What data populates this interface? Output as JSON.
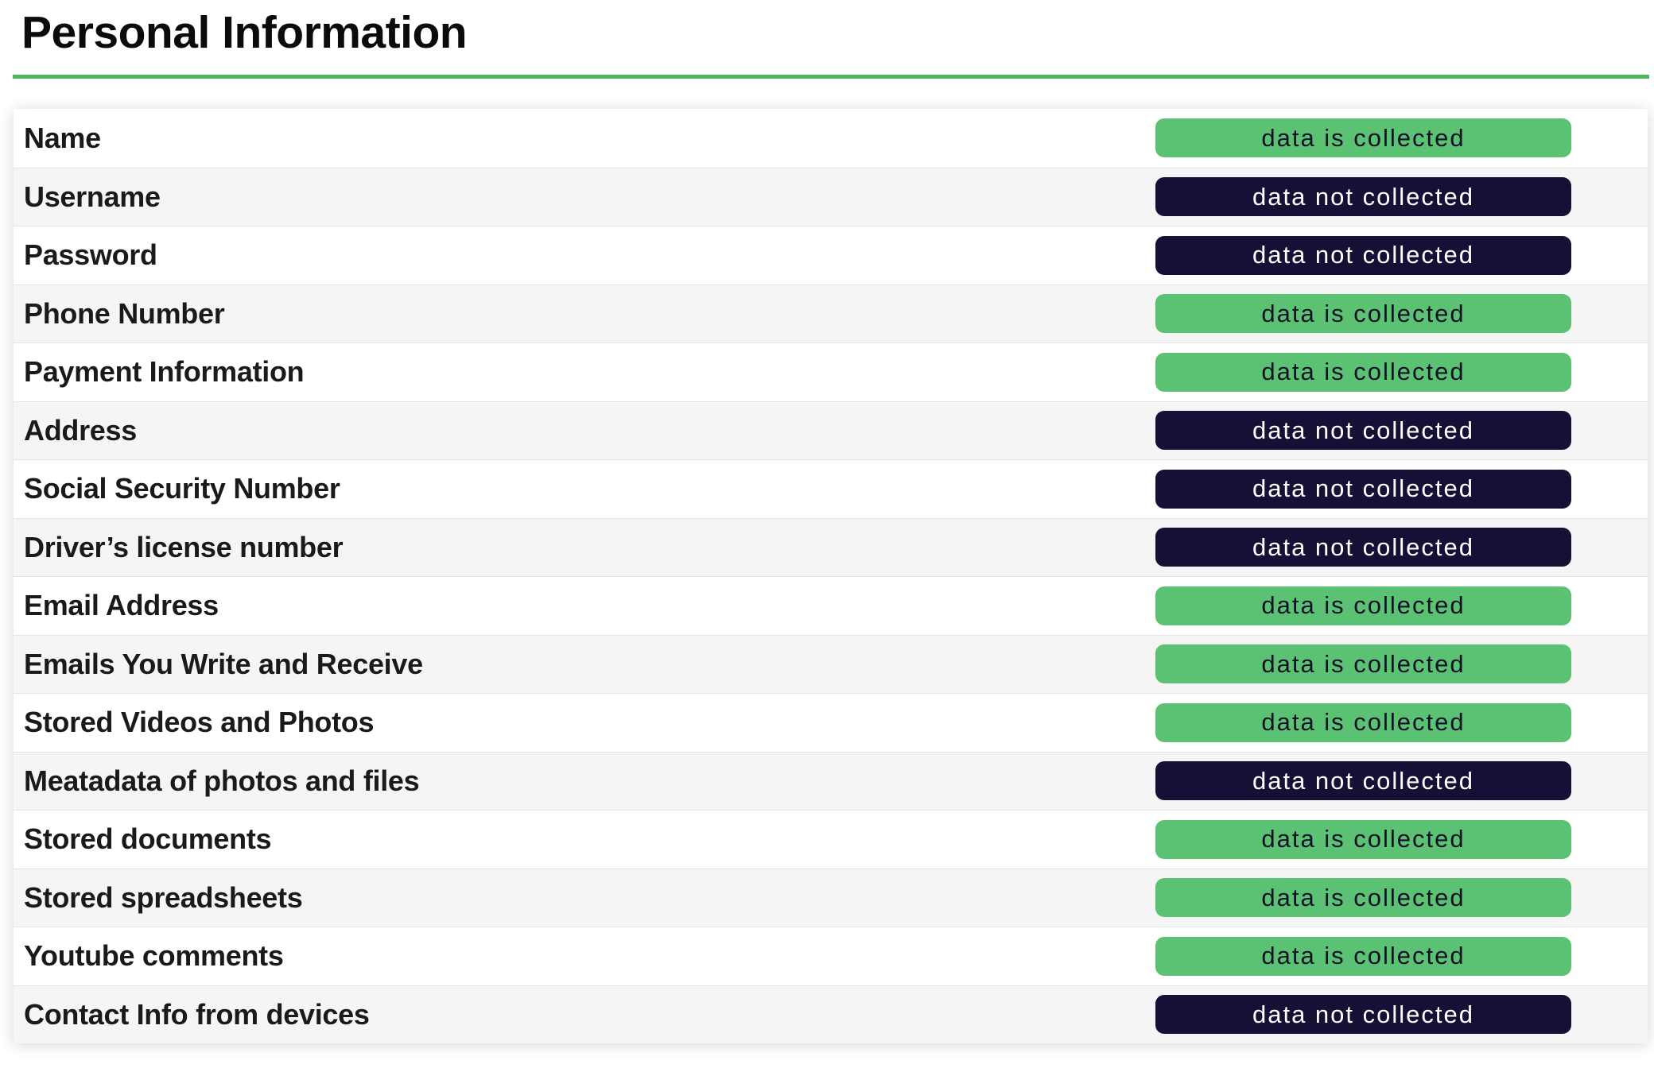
{
  "page": {
    "title": "Personal Information"
  },
  "colors": {
    "divider": "#4fb662",
    "collected_bg": "#5cc273",
    "collected_text": "#101027",
    "not_collected_bg": "#161037",
    "not_collected_text": "#ffffff",
    "row_alt_bg": "#f5f5f6",
    "row_border": "#e4e4e4"
  },
  "legend": {
    "collected_label": "data is collected",
    "not_collected_label": "data not collected"
  },
  "table": {
    "rows": [
      {
        "label": "Name",
        "status": "collected",
        "status_label": "data is collected"
      },
      {
        "label": "Username",
        "status": "not_collected",
        "status_label": "data not collected"
      },
      {
        "label": "Password",
        "status": "not_collected",
        "status_label": "data not collected"
      },
      {
        "label": "Phone Number",
        "status": "collected",
        "status_label": "data is collected"
      },
      {
        "label": "Payment Information",
        "status": "collected",
        "status_label": "data is collected"
      },
      {
        "label": "Address",
        "status": "not_collected",
        "status_label": "data not collected"
      },
      {
        "label": "Social Security Number",
        "status": "not_collected",
        "status_label": "data not collected"
      },
      {
        "label": "Driver’s license number",
        "status": "not_collected",
        "status_label": "data not collected"
      },
      {
        "label": "Email Address",
        "status": "collected",
        "status_label": "data is collected"
      },
      {
        "label": "Emails You Write and Receive",
        "status": "collected",
        "status_label": "data is collected"
      },
      {
        "label": "Stored Videos and Photos",
        "status": "collected",
        "status_label": "data is collected"
      },
      {
        "label": "Meatadata of photos and files",
        "status": "not_collected",
        "status_label": "data not collected"
      },
      {
        "label": "Stored documents",
        "status": "collected",
        "status_label": "data is collected"
      },
      {
        "label": "Stored spreadsheets",
        "status": "collected",
        "status_label": "data is collected"
      },
      {
        "label": "Youtube comments",
        "status": "collected",
        "status_label": "data is collected"
      },
      {
        "label": "Contact Info from devices",
        "status": "not_collected",
        "status_label": "data not collected"
      }
    ]
  }
}
